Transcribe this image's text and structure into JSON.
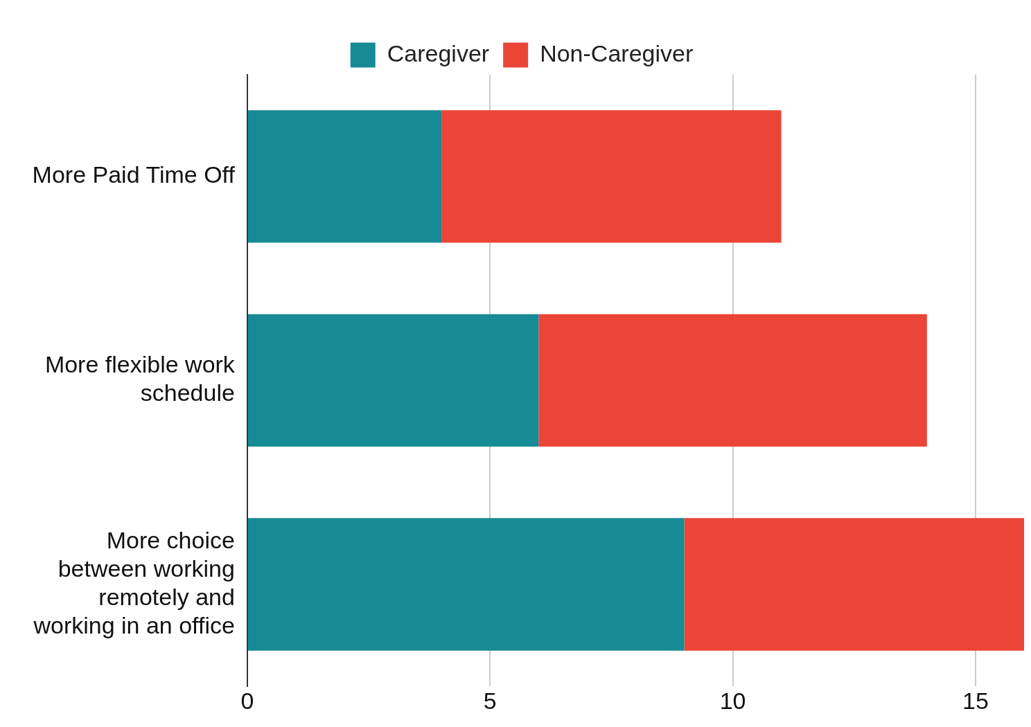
{
  "chart_data": {
    "type": "bar",
    "orientation": "horizontal",
    "stacked": true,
    "categories": [
      "More Paid Time Off",
      "More flexible work\nschedule",
      "More choice\nbetween working\nremotely and\nworking in an office"
    ],
    "series": [
      {
        "name": "Caregiver",
        "color": "#168b95",
        "values": [
          4,
          6,
          9
        ]
      },
      {
        "name": "Non-Caregiver",
        "color": "#eb4537",
        "values": [
          7,
          8,
          7
        ]
      }
    ],
    "xlim": [
      0,
      16
    ],
    "xticks": [
      0,
      5,
      10,
      15
    ],
    "grid": "x",
    "legend": "top"
  }
}
